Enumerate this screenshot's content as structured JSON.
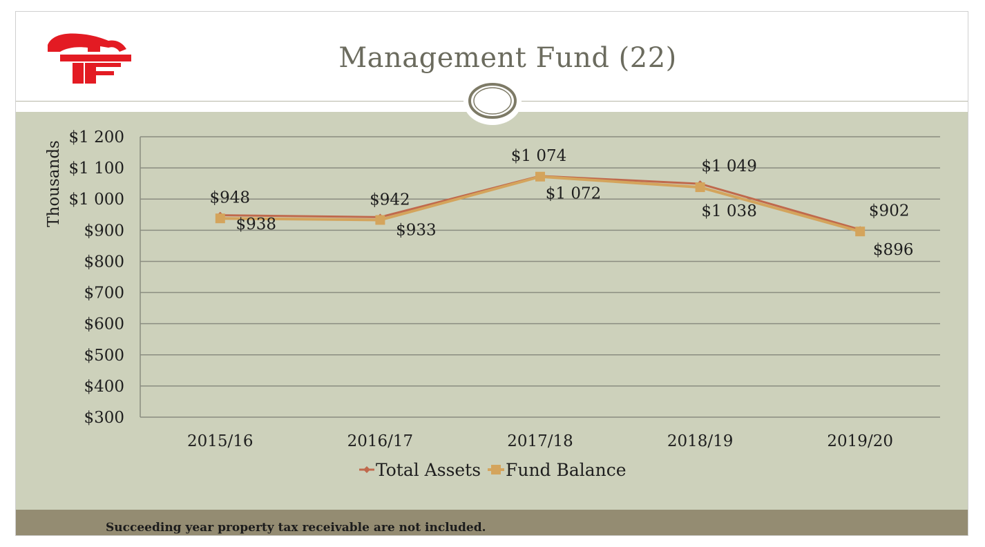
{
  "slide": {
    "title": "Management Fund (22)",
    "footnote": "Succeeding year property tax receivable are not included."
  },
  "colors": {
    "panel": "#cdd1bb",
    "footer": "#948c72",
    "logo": "#e31b23",
    "total_assets": "#c0694c",
    "fund_balance": "#d4a45c"
  },
  "logo": {
    "icon": "letter-f-logo-icon"
  },
  "chart_data": {
    "type": "line",
    "categories": [
      "2015/16",
      "2016/17",
      "2017/18",
      "2018/19",
      "2019/20"
    ],
    "ylabel": "Thousands",
    "xlabel": "",
    "ylim": [
      300,
      1200
    ],
    "yticks": [
      300,
      400,
      500,
      600,
      700,
      800,
      900,
      1000,
      1100,
      1200
    ],
    "ytick_labels": [
      "$300",
      "$400",
      "$500",
      "$600",
      "$700",
      "$800",
      "$900",
      "$1 000",
      "$1 100",
      "$1 200"
    ],
    "grid": true,
    "legend": "bottom",
    "series": [
      {
        "name": "Total Assets",
        "values": [
          948,
          942,
          1074,
          1049,
          902
        ],
        "labels": [
          "$948",
          "$942",
          "$1 074",
          "$1 049",
          "$902"
        ],
        "color": "#c0694c",
        "marker": "diamond"
      },
      {
        "name": "Fund Balance",
        "values": [
          938,
          933,
          1072,
          1038,
          896
        ],
        "labels": [
          "$938",
          "$933",
          "$1 072",
          "$1 038",
          "$896"
        ],
        "color": "#d4a45c",
        "marker": "square"
      }
    ]
  }
}
